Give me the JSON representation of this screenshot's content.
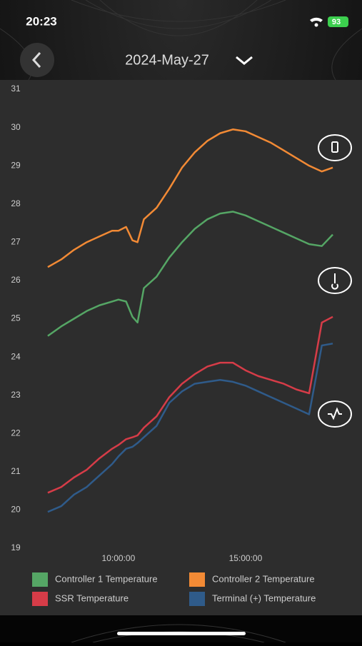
{
  "status_bar": {
    "time": "20:23",
    "battery": "93"
  },
  "header": {
    "date": "2024-May-27"
  },
  "chart_data": {
    "type": "line",
    "x": [
      7.22,
      7.75,
      8.25,
      8.75,
      9.25,
      9.75,
      10.0,
      10.3,
      10.55,
      10.75,
      11.0,
      11.5,
      12.0,
      12.5,
      13.0,
      13.5,
      14.0,
      14.5,
      15.0,
      15.5,
      16.0,
      16.5,
      17.0,
      17.5,
      18.0,
      18.43
    ],
    "series": [
      {
        "name": "Controller 1 Temperature",
        "color": "#55a665",
        "values": [
          24.55,
          24.8,
          25.0,
          25.2,
          25.35,
          25.45,
          25.5,
          25.45,
          25.05,
          24.9,
          25.8,
          26.1,
          26.6,
          27.0,
          27.35,
          27.6,
          27.75,
          27.8,
          27.7,
          27.55,
          27.4,
          27.25,
          27.1,
          26.95,
          26.9,
          27.2
        ]
      },
      {
        "name": "Controller 2 Temperature",
        "color": "#f28a35",
        "values": [
          26.35,
          26.55,
          26.8,
          27.0,
          27.15,
          27.3,
          27.3,
          27.4,
          27.05,
          27.0,
          27.6,
          27.9,
          28.4,
          28.95,
          29.35,
          29.65,
          29.85,
          29.95,
          29.9,
          29.75,
          29.6,
          29.4,
          29.2,
          29.0,
          28.85,
          28.95
        ]
      },
      {
        "name": "SSR Temperature",
        "color": "#d63c48",
        "values": [
          20.45,
          20.6,
          20.85,
          21.05,
          21.35,
          21.6,
          21.7,
          21.85,
          21.9,
          21.95,
          22.15,
          22.45,
          22.95,
          23.3,
          23.55,
          23.75,
          23.85,
          23.85,
          23.65,
          23.5,
          23.4,
          23.3,
          23.15,
          23.05,
          24.9,
          25.05
        ]
      },
      {
        "name": "Terminal (+) Temperature",
        "color": "#2f5b8a",
        "values": [
          19.95,
          20.1,
          20.4,
          20.6,
          20.9,
          21.2,
          21.4,
          21.6,
          21.65,
          21.75,
          21.9,
          22.2,
          22.8,
          23.1,
          23.3,
          23.35,
          23.4,
          23.35,
          23.25,
          23.1,
          22.95,
          22.8,
          22.65,
          22.5,
          24.3,
          24.35
        ]
      }
    ],
    "xlim": [
      5.34,
      19.58
    ],
    "xticks": [
      {
        "value": 10,
        "label": "10:00:00"
      },
      {
        "value": 15,
        "label": "15:00:00"
      }
    ],
    "ylim": [
      19,
      31
    ],
    "yticks": [
      19,
      20,
      21,
      22,
      23,
      24,
      25,
      26,
      27,
      28,
      29,
      30,
      31
    ]
  }
}
